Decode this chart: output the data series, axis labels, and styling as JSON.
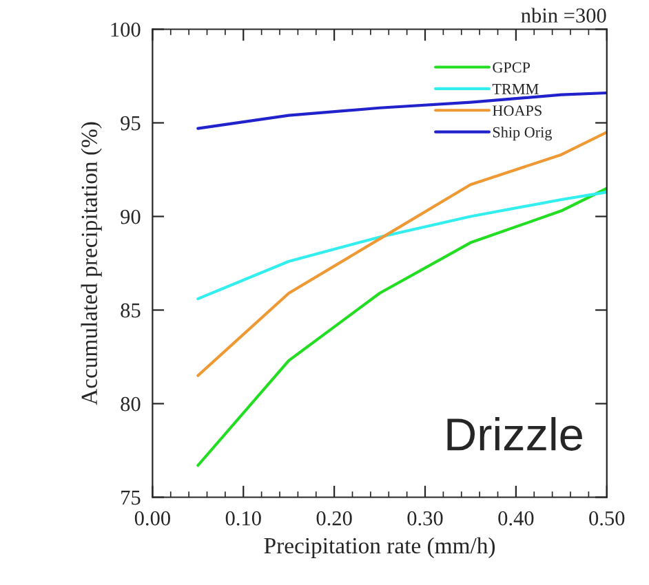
{
  "chart_data": {
    "type": "line",
    "xlabel": "Precipitation rate (mm/h)",
    "ylabel": "Accumulated precipitation (%)",
    "annotations": [
      "nbin =300",
      "Drizzle"
    ],
    "x": [
      0.05,
      0.15,
      0.25,
      0.35,
      0.45,
      0.5
    ],
    "series": [
      {
        "name": "GPCP",
        "color": "#22dd22",
        "values": [
          76.7,
          82.3,
          85.9,
          88.6,
          90.3,
          91.5
        ]
      },
      {
        "name": "TRMM",
        "color": "#33eeee",
        "values": [
          85.6,
          87.6,
          88.9,
          90.0,
          90.9,
          91.3
        ]
      },
      {
        "name": "HOAPS",
        "color": "#ee9933",
        "values": [
          81.5,
          85.9,
          88.8,
          91.7,
          93.3,
          94.5
        ]
      },
      {
        "name": "Ship Orig",
        "color": "#2222cc",
        "values": [
          94.7,
          95.4,
          95.8,
          96.1,
          96.5,
          96.6
        ]
      }
    ],
    "xlim": [
      0,
      0.5
    ],
    "xticks": [
      {
        "value": 0,
        "label": "0.00"
      },
      {
        "value": 0.1,
        "label": "0.10"
      },
      {
        "value": 0.2,
        "label": "0.20"
      },
      {
        "value": 0.3,
        "label": "0.30"
      },
      {
        "value": 0.4,
        "label": "0.40"
      },
      {
        "value": 0.5,
        "label": "0.50"
      }
    ],
    "ylim": [
      75,
      100
    ],
    "yticks": [
      75,
      80,
      85,
      90,
      95,
      100
    ],
    "legend": "top right",
    "grid": false
  }
}
